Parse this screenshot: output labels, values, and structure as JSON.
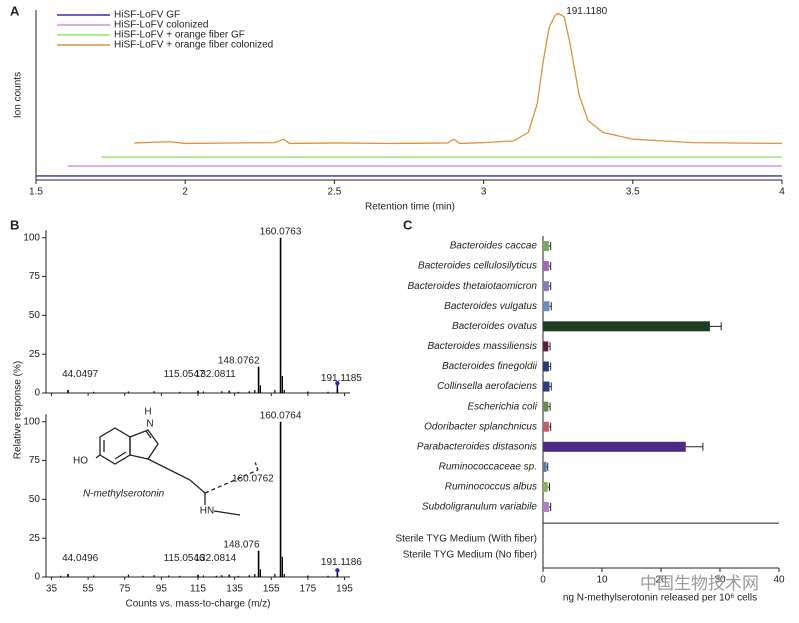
{
  "chart_data": [
    {
      "type": "line",
      "panel": "A",
      "ylabel": "Ion counts",
      "xlabel": "Retention time (min)",
      "xlim": [
        1.5,
        4
      ],
      "xticks": [
        1.5,
        2,
        2.5,
        3,
        3.5,
        4
      ],
      "ylim": [
        0,
        100
      ],
      "legend": "upper left",
      "annotation": "191.1180",
      "series": [
        {
          "name": "HiSF-LoFV GF",
          "color": "#3d2db0",
          "x": [
            1.5,
            4
          ],
          "values": [
            2.4,
            2.4
          ]
        },
        {
          "name": "HiSF-LoFV colonized",
          "color": "#d78be0",
          "x": [
            1.607,
            4
          ],
          "values": [
            8.2,
            8.2
          ]
        },
        {
          "name": "HiSF-LoFV + orange fiber GF",
          "color": "#90e86a",
          "x": [
            1.718,
            4
          ],
          "values": [
            13.5,
            13.5
          ]
        },
        {
          "name": "HiSF-LoFV + orange fiber colonized",
          "color": "#d9933b",
          "x": [
            1.83,
            1.95,
            2.0,
            2.3,
            2.33,
            2.35,
            2.5,
            2.7,
            2.88,
            2.9,
            2.92,
            3.0,
            3.1,
            3.15,
            3.18,
            3.2,
            3.22,
            3.24,
            3.25,
            3.27,
            3.29,
            3.32,
            3.35,
            3.4,
            3.5,
            3.6,
            3.7,
            4.0
          ],
          "values": [
            21.8,
            22.5,
            21.5,
            22,
            24,
            21.5,
            21.8,
            21.5,
            21.8,
            24,
            21.5,
            22,
            23,
            28,
            45,
            70,
            90,
            97,
            98,
            96,
            80,
            50,
            35,
            28,
            24,
            23,
            22,
            21.5
          ]
        }
      ]
    },
    {
      "type": "bar",
      "panel": "B",
      "ylabel": "Relative response (%)",
      "color": "#000000",
      "marker_color": "#2a2ab0",
      "xlim": [
        32,
        198
      ],
      "xticks": [
        35,
        55,
        75,
        95,
        115,
        135,
        155,
        175,
        195
      ],
      "ylim": [
        0,
        105
      ],
      "yticks": [
        0,
        25,
        50,
        75,
        100
      ],
      "x": [
        44.0497,
        115.0547,
        132.0811,
        148.0762,
        160.0763,
        191.1185
      ],
      "values": [
        2,
        1.5,
        1.5,
        17,
        100,
        5
      ],
      "minor_x": [
        58,
        77,
        91,
        105,
        118,
        128,
        137,
        143,
        146,
        149.08,
        157,
        161.08,
        162.08,
        175,
        186
      ],
      "minor_values": [
        0.8,
        1,
        1.2,
        0.8,
        1,
        1.2,
        0.8,
        1.2,
        2,
        5,
        2,
        11,
        2,
        1,
        0.8
      ]
    },
    {
      "type": "bar",
      "color": "#000000",
      "marker_color": "#2a2ab0",
      "xlabel": "Counts vs. mass-to-charge (m/z)",
      "xlim": [
        32,
        198
      ],
      "xticks": [
        35,
        55,
        75,
        95,
        115,
        135,
        155,
        175,
        195
      ],
      "ylim": [
        0,
        105
      ],
      "yticks": [
        0,
        25,
        50,
        75,
        100
      ],
      "x": [
        44.0496,
        115.0546,
        132.0814,
        148.076,
        160.0764,
        191.1186
      ],
      "values": [
        2,
        1.5,
        1.5,
        17,
        100,
        3
      ],
      "minor_x": [
        40,
        58,
        77,
        85,
        91,
        99,
        105,
        118,
        125,
        128,
        137,
        143,
        146,
        149.08,
        157,
        161.08,
        162.08,
        175,
        186
      ],
      "minor_values": [
        0.8,
        1,
        1.5,
        0.8,
        1.2,
        1,
        0.8,
        1,
        0.8,
        1.2,
        0.8,
        1.2,
        2,
        5,
        2,
        13,
        2,
        1,
        0.8
      ],
      "compound": "N-methylserotonin",
      "fragment": "160.0762",
      "atoms": [
        "HO",
        "H",
        "N",
        "HN"
      ]
    },
    {
      "type": "barh",
      "panel": "C",
      "xlabel": "ng N-methylserotonin released per 10⁶ cells",
      "xlim": [
        0,
        40
      ],
      "xticks": [
        0,
        10,
        20,
        30,
        40
      ],
      "categories": [
        "Bacteroides caccae",
        "Bacteroides cellulosilyticus",
        "Bacteroides thetaiotaomicron",
        "Bacteroides vulgatus",
        "Bacteroides ovatus",
        "Bacteroides massiliensis",
        "Bacteroides finegoldii",
        "Collinsella aerofaciens",
        "Escherichia coli",
        "Odoribacter splanchnicus",
        "Parabacteroides distasonis",
        "Ruminococcaceae sp.",
        "Ruminococcus albus",
        "Subdoligranulum variabile"
      ],
      "values": [
        1.0,
        1.0,
        1.0,
        1.1,
        28.3,
        0.9,
        1.0,
        1.1,
        0.9,
        1.0,
        24.2,
        0.6,
        0.8,
        1.0
      ],
      "errors": [
        0.3,
        0.3,
        0.3,
        0.3,
        1.9,
        0.3,
        0.3,
        0.3,
        0.3,
        0.3,
        2.9,
        0.2,
        0.3,
        0.3
      ],
      "colors": [
        "#7aa860",
        "#9b6fb0",
        "#8d78b8",
        "#6e8cc0",
        "#1f3d1f",
        "#5a2040",
        "#2e3a78",
        "#2b3f7a",
        "#6a8a5a",
        "#c06070",
        "#4b2a8a",
        "#5878a8",
        "#88b060",
        "#b080c0"
      ],
      "controls": {
        "categories": [
          "Sterile TYG Medium (With fiber)",
          "Sterile TYG Medium (No fiber)"
        ],
        "values": [
          0,
          0
        ]
      }
    },
    {
      "watermark": "中国生物技术网"
    }
  ]
}
